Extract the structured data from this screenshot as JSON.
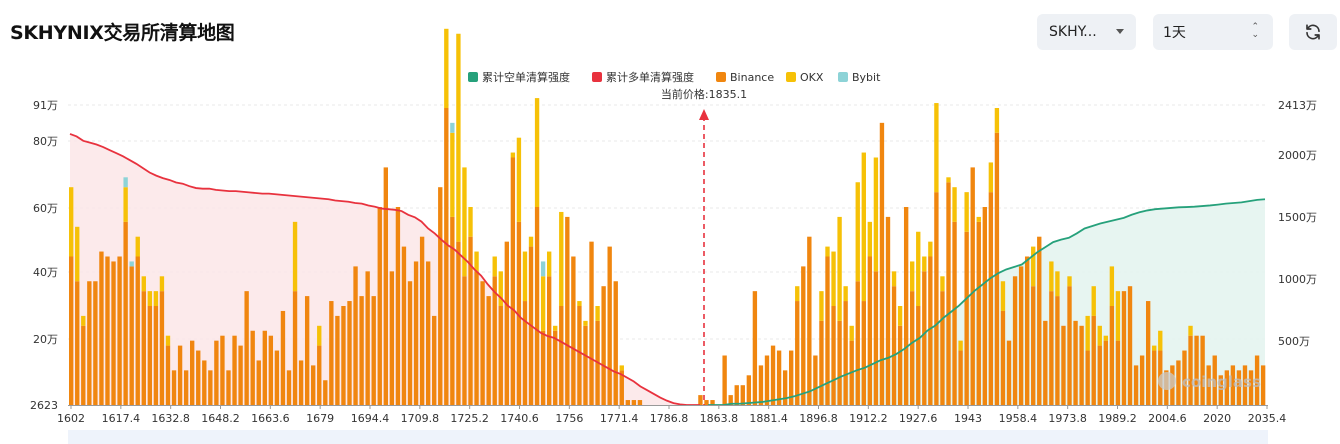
{
  "header": {
    "title": "SKHYNIX交易所清算地图",
    "symbol_select": "SKHY...",
    "period_select": "1天"
  },
  "colors": {
    "short_cum": "#26a17b",
    "long_cum": "#e8323e",
    "binance": "#f0860f",
    "okx": "#f6c107",
    "bybit": "#8dd3d7",
    "short_fill": "#e3f3ee",
    "long_fill": "#fce6e8"
  },
  "chart_data": {
    "type": "bar",
    "legend": [
      "累计空单清算强度",
      "累计多单清算强度",
      "Binance",
      "OKX",
      "Bybit"
    ],
    "current_price_label": "当前价格:1835.1",
    "current_price": 1835.1,
    "x_tick_labels": [
      "1602",
      "1617.4",
      "1632.8",
      "1648.2",
      "1663.6",
      "1679",
      "1694.4",
      "1709.8",
      "1725.2",
      "1740.6",
      "1756",
      "1771.4",
      "1786.8",
      "1863.8",
      "1881.4",
      "1896.8",
      "1912.2",
      "1927.6",
      "1943",
      "1958.4",
      "1973.8",
      "1989.2",
      "2004.6",
      "2020",
      "2035.4"
    ],
    "y_left_ticks": [
      "2623",
      "20万",
      "40万",
      "60万",
      "80万",
      "91万"
    ],
    "y_right_ticks": [
      "500万",
      "1000万",
      "1500万",
      "2000万",
      "2413万"
    ],
    "y_left_range": [
      2623,
      910000
    ],
    "y_right_range": [
      0,
      24130000
    ],
    "watermark": "coinglass",
    "binance": [
      30,
      25,
      16,
      25,
      25,
      31,
      30,
      29,
      30,
      37,
      28,
      30,
      23,
      20,
      20,
      23,
      12,
      7,
      12,
      7,
      13,
      11,
      9,
      7,
      13,
      14,
      7,
      14,
      12,
      23,
      15,
      9,
      15,
      14,
      11,
      19,
      7,
      23,
      9,
      22,
      8,
      12,
      5,
      21,
      18,
      20,
      21,
      28,
      22,
      27,
      22,
      40,
      48,
      27,
      40,
      32,
      25,
      29,
      34,
      29,
      18,
      44,
      60,
      38,
      33,
      26,
      34,
      27,
      25,
      22,
      26,
      20,
      33,
      50,
      37,
      21,
      32,
      40,
      15,
      26,
      15,
      20,
      38,
      30,
      20,
      16,
      33,
      17,
      24,
      32,
      25,
      7,
      1,
      1,
      1,
      0,
      0,
      0,
      0,
      0,
      0,
      0,
      0,
      0,
      2,
      1,
      1,
      0,
      10,
      2,
      4,
      4,
      6,
      23,
      8,
      10,
      12,
      11,
      7,
      11,
      21,
      28,
      34,
      10,
      17,
      30,
      20,
      17,
      21,
      13,
      25,
      21,
      30,
      27,
      57,
      38,
      24,
      16,
      40,
      23,
      20,
      27,
      30,
      43,
      23,
      45,
      37,
      11,
      35,
      48,
      37,
      40,
      43,
      55,
      19,
      13,
      26,
      28,
      30,
      24,
      34,
      17,
      23,
      22,
      16,
      24,
      17,
      16,
      11,
      18,
      12,
      13,
      20,
      13,
      23,
      24,
      8,
      10,
      21,
      11,
      11,
      7,
      8,
      9,
      11,
      14,
      14,
      14,
      8,
      10,
      6,
      7,
      8,
      7,
      8,
      7,
      10,
      8
    ],
    "okx": [
      14,
      11,
      2,
      0,
      0,
      0,
      0,
      0,
      0,
      7,
      0,
      4,
      3,
      3,
      3,
      3,
      2,
      0,
      0,
      0,
      0,
      0,
      0,
      0,
      0,
      0,
      0,
      0,
      0,
      0,
      0,
      0,
      0,
      0,
      0,
      0,
      0,
      14,
      0,
      0,
      0,
      4,
      0,
      0,
      0,
      0,
      0,
      0,
      0,
      0,
      0,
      0,
      0,
      0,
      0,
      0,
      0,
      0,
      0,
      0,
      0,
      0,
      16,
      17,
      42,
      22,
      6,
      4,
      0,
      0,
      4,
      7,
      0,
      1,
      17,
      10,
      2,
      22,
      11,
      5,
      1,
      19,
      0,
      0,
      1,
      1,
      0,
      3,
      0,
      0,
      0,
      1,
      0,
      0,
      0,
      0,
      0,
      0,
      0,
      0,
      0,
      0,
      0,
      0,
      0,
      0,
      0,
      0,
      0,
      0,
      0,
      0,
      0,
      0,
      0,
      0,
      0,
      0,
      0,
      0,
      3,
      0,
      0,
      0,
      6,
      2,
      11,
      21,
      3,
      3,
      20,
      30,
      7,
      23,
      0,
      0,
      3,
      4,
      0,
      6,
      15,
      3,
      3,
      18,
      3,
      1,
      7,
      2,
      8,
      0,
      1,
      0,
      6,
      5,
      6,
      0,
      0,
      0,
      0,
      8,
      0,
      0,
      6,
      5,
      0,
      2,
      0,
      0,
      7,
      6,
      4,
      1,
      8,
      10,
      0,
      0,
      0,
      0,
      0,
      1,
      4,
      0,
      0,
      0,
      0,
      2,
      0,
      0,
      0,
      0,
      0,
      0
    ],
    "bybit": [
      0,
      0,
      0,
      0,
      0,
      0,
      0,
      0,
      0,
      2,
      1,
      0,
      0,
      0,
      0,
      0,
      0,
      0,
      0,
      0,
      0,
      0,
      0,
      0,
      0,
      0,
      0,
      0,
      0,
      0,
      0,
      0,
      0,
      0,
      0,
      0,
      0,
      0,
      0,
      0,
      0,
      0,
      0,
      0,
      0,
      0,
      0,
      0,
      0,
      0,
      0,
      0,
      0,
      0,
      0,
      0,
      0,
      0,
      0,
      0,
      0,
      0,
      0,
      2,
      0,
      0,
      0,
      0,
      0,
      0,
      0,
      0,
      0,
      0,
      0,
      0,
      0,
      0,
      3,
      0,
      0,
      0,
      0,
      0,
      0,
      0,
      0,
      0,
      0,
      0,
      0,
      0,
      0,
      0,
      0,
      0,
      0,
      0,
      0,
      0,
      0,
      0,
      0,
      0,
      0,
      0,
      0,
      0,
      0,
      0,
      0,
      0,
      0,
      0,
      0,
      0,
      0,
      0,
      0,
      0,
      0,
      0,
      0,
      0,
      0,
      0,
      0,
      0,
      0,
      0,
      0,
      0,
      0,
      0,
      0,
      0,
      0,
      0,
      0,
      0,
      0,
      0,
      0,
      0,
      0,
      0,
      0,
      0,
      0,
      0,
      0,
      0,
      0,
      0,
      0,
      0,
      0,
      0,
      0,
      0,
      0,
      0,
      0,
      0,
      0,
      0,
      0,
      0,
      0,
      0,
      0,
      0,
      0,
      0,
      0,
      0,
      0,
      0,
      0,
      0,
      0,
      0,
      0,
      0,
      0,
      0,
      0,
      0,
      0,
      0,
      0,
      0,
      0,
      0,
      0,
      0
    ],
    "long_cum_wan": [
      2180,
      2160,
      2125,
      2110,
      2095,
      2075,
      2050,
      2025,
      2000,
      1970,
      1940,
      1905,
      1870,
      1845,
      1825,
      1810,
      1790,
      1780,
      1760,
      1745,
      1740,
      1740,
      1730,
      1725,
      1720,
      1720,
      1715,
      1710,
      1705,
      1700,
      1700,
      1695,
      1690,
      1685,
      1680,
      1675,
      1670,
      1665,
      1660,
      1655,
      1645,
      1640,
      1635,
      1625,
      1620,
      1605,
      1595,
      1580,
      1575,
      1570,
      1560,
      1530,
      1510,
      1475,
      1420,
      1380,
      1330,
      1285,
      1250,
      1200,
      1150,
      1090,
      1040,
      970,
      910,
      860,
      800,
      760,
      700,
      660,
      620,
      580,
      555,
      540,
      510,
      480,
      450,
      420,
      390,
      360,
      330,
      300,
      270,
      250,
      220,
      190,
      150,
      120,
      90,
      60,
      35,
      15,
      5,
      0,
      0,
      0
    ],
    "short_cum_wan": [
      0,
      0,
      0,
      10,
      10,
      15,
      20,
      25,
      35,
      45,
      55,
      70,
      90,
      110,
      140,
      170,
      200,
      230,
      255,
      280,
      300,
      330,
      360,
      380,
      410,
      450,
      500,
      540,
      600,
      640,
      700,
      750,
      800,
      860,
      920,
      970,
      1020,
      1060,
      1090,
      1110,
      1130,
      1180,
      1230,
      1270,
      1310,
      1330,
      1345,
      1380,
      1420,
      1440,
      1460,
      1475,
      1490,
      1505,
      1530,
      1550,
      1565,
      1575,
      1580,
      1585,
      1590,
      1592,
      1595,
      1600,
      1605,
      1612,
      1620,
      1625,
      1630,
      1640,
      1650,
      1655
    ]
  }
}
